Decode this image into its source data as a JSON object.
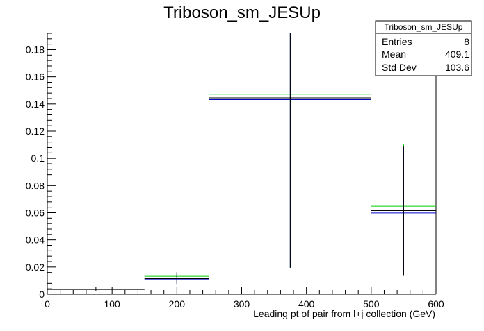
{
  "chart_data": {
    "type": "line",
    "title": "Triboson_sm_JESUp",
    "xlabel": "Leading pt of pair from l+j collection (GeV)",
    "ylabel": "",
    "xlim": [
      0,
      600
    ],
    "ylim": [
      0,
      0.1925
    ],
    "x_ticks": [
      0,
      100,
      200,
      300,
      400,
      500,
      600
    ],
    "y_ticks": [
      0,
      0.02,
      0.04,
      0.06,
      0.08,
      0.1,
      0.12,
      0.14,
      0.16,
      0.18
    ],
    "x_tick_labels": [
      "0",
      "100",
      "200",
      "300",
      "400",
      "500",
      "600"
    ],
    "y_tick_labels": [
      "0",
      "0.02",
      "0.04",
      "0.06",
      "0.08",
      "0.1",
      "0.12",
      "0.14",
      "0.16",
      "0.18"
    ],
    "grid": false,
    "stats_box": {
      "name": "Triboson_sm_JESUp",
      "rows": [
        {
          "label": "Entries",
          "value": "8"
        },
        {
          "label": "Mean",
          "value": "409.1"
        },
        {
          "label": "Std Dev",
          "value": "103.6"
        }
      ]
    },
    "colors": {
      "black": "#000000",
      "blue": "#0000cc",
      "green": "#00cc00"
    },
    "series": [
      {
        "color": "black",
        "bins": [
          {
            "x0": 0,
            "x1": 150,
            "y": 0.0035,
            "err_lo": 0.0022,
            "err_hi": 0.0055
          },
          {
            "x0": 150,
            "x1": 250,
            "y": 0.0115,
            "err_lo": 0.0075,
            "err_hi": 0.0162
          },
          {
            "x0": 250,
            "x1": 500,
            "y": 0.1445,
            "err_lo": 0.0195,
            "err_hi": 0.1925
          },
          {
            "x0": 500,
            "x1": 600,
            "y": 0.0615,
            "err_lo": 0.0135,
            "err_hi": 0.109
          }
        ]
      },
      {
        "color": "blue",
        "bins": [
          {
            "x0": 150,
            "x1": 250,
            "y": 0.0112,
            "err_lo": 0.0075,
            "err_hi": 0.0158
          },
          {
            "x0": 250,
            "x1": 500,
            "y": 0.1432,
            "err_lo": 0.0195,
            "err_hi": 0.1925
          },
          {
            "x0": 500,
            "x1": 600,
            "y": 0.0598,
            "err_lo": 0.0135,
            "err_hi": 0.108
          }
        ]
      },
      {
        "color": "green",
        "bins": [
          {
            "x0": 150,
            "x1": 250,
            "y": 0.0132,
            "err_lo": 0.0085,
            "err_hi": 0.0165
          },
          {
            "x0": 250,
            "x1": 500,
            "y": 0.1472,
            "err_lo": 0.0195,
            "err_hi": 0.1925
          },
          {
            "x0": 500,
            "x1": 600,
            "y": 0.0648,
            "err_lo": 0.0145,
            "err_hi": 0.1105
          }
        ]
      }
    ]
  }
}
